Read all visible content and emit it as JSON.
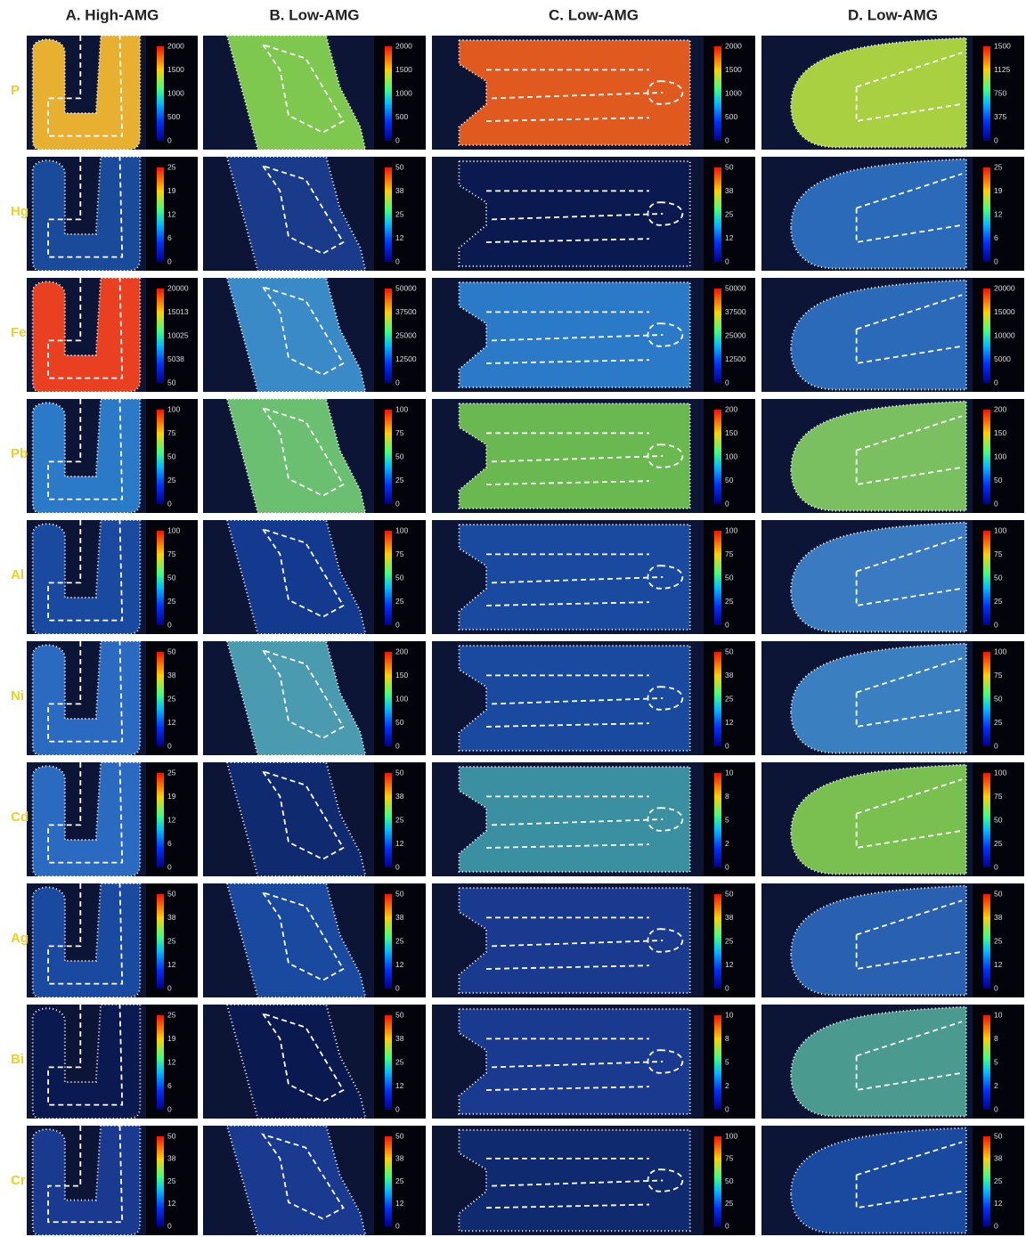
{
  "columns": [
    "A. High-AMG",
    "B. Low-AMG",
    "C. Low-AMG",
    "D. Low-AMG"
  ],
  "rows": [
    {
      "label": "P",
      "scales": [
        [
          2000,
          1500,
          1000,
          500,
          0
        ],
        [
          2000,
          1500,
          1000,
          500,
          0
        ],
        [
          2000,
          1500,
          1000,
          500,
          0
        ],
        [
          1500,
          1125,
          750,
          375,
          0
        ]
      ]
    },
    {
      "label": "Hg",
      "scales": [
        [
          25,
          19,
          12,
          6,
          0
        ],
        [
          50,
          38,
          25,
          12,
          0
        ],
        [
          50,
          38,
          25,
          12,
          0
        ],
        [
          25,
          19,
          12,
          6,
          0
        ]
      ]
    },
    {
      "label": "Fe",
      "scales": [
        [
          20000,
          15013,
          10025,
          5038,
          50
        ],
        [
          50000,
          37500,
          25000,
          12500,
          0
        ],
        [
          50000,
          37500,
          25000,
          12500,
          0
        ],
        [
          20000,
          15000,
          10000,
          5000,
          0
        ]
      ]
    },
    {
      "label": "Pb",
      "scales": [
        [
          100,
          75,
          50,
          25,
          0
        ],
        [
          100,
          75,
          50,
          25,
          0
        ],
        [
          200,
          150,
          100,
          50,
          0
        ],
        [
          200,
          150,
          100,
          50,
          0
        ]
      ]
    },
    {
      "label": "Al",
      "scales": [
        [
          100,
          75,
          50,
          25,
          0
        ],
        [
          100,
          75,
          50,
          25,
          0
        ],
        [
          100,
          75,
          50,
          25,
          0
        ],
        [
          100,
          75,
          50,
          25,
          0
        ]
      ]
    },
    {
      "label": "Ni",
      "scales": [
        [
          50,
          38,
          25,
          12,
          0
        ],
        [
          200,
          150,
          100,
          50,
          0
        ],
        [
          50,
          38,
          25,
          12,
          0
        ],
        [
          100,
          75,
          50,
          25,
          0
        ]
      ]
    },
    {
      "label": "Cd",
      "scales": [
        [
          25,
          19,
          12,
          6,
          0
        ],
        [
          50,
          38,
          25,
          12,
          0
        ],
        [
          10,
          8,
          5,
          2,
          0
        ],
        [
          100,
          75,
          50,
          25,
          0
        ]
      ]
    },
    {
      "label": "Ag",
      "scales": [
        [
          50,
          38,
          25,
          12,
          0
        ],
        [
          50,
          38,
          25,
          12,
          0
        ],
        [
          50,
          38,
          25,
          12,
          0
        ],
        [
          50,
          38,
          25,
          12,
          0
        ]
      ]
    },
    {
      "label": "Bi",
      "scales": [
        [
          25,
          19,
          12,
          6,
          0
        ],
        [
          50,
          38,
          25,
          12,
          0
        ],
        [
          10,
          8,
          5,
          2,
          0
        ],
        [
          10,
          8,
          5,
          2,
          0
        ]
      ]
    },
    {
      "label": "Cr",
      "scales": [
        [
          50,
          38,
          25,
          12,
          0
        ],
        [
          50,
          38,
          25,
          12,
          0
        ],
        [
          100,
          75,
          50,
          25,
          0
        ],
        [
          50,
          38,
          25,
          12,
          0
        ]
      ]
    }
  ]
}
